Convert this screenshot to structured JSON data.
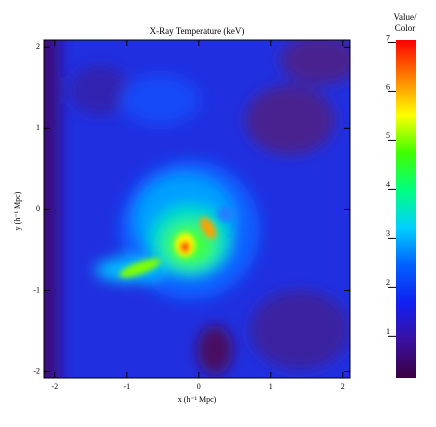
{
  "chart_data": {
    "type": "heatmap",
    "title": "X-Ray Temperature (keV)",
    "xlabel": "x (h⁻¹ Mpc)",
    "ylabel": "y (h⁻¹ Mpc)",
    "xlim": [
      -2.15,
      2.1
    ],
    "ylim": [
      -2.08,
      2.09
    ],
    "xticks": [
      -2,
      -1,
      0,
      1,
      2
    ],
    "yticks": [
      -2,
      -1,
      0,
      1,
      2
    ],
    "colorbar": {
      "label_lines": [
        "Value/",
        "Color"
      ],
      "clim": [
        0.15,
        7.05
      ],
      "ticks": [
        1,
        2,
        3,
        4,
        5,
        6,
        7
      ],
      "colormap": [
        "#3a0040",
        "#3a10a0",
        "#1020f0",
        "#0060ff",
        "#00d0ff",
        "#00ff80",
        "#40ff00",
        "#ffff00",
        "#ff8000",
        "#ff0000"
      ]
    }
  }
}
